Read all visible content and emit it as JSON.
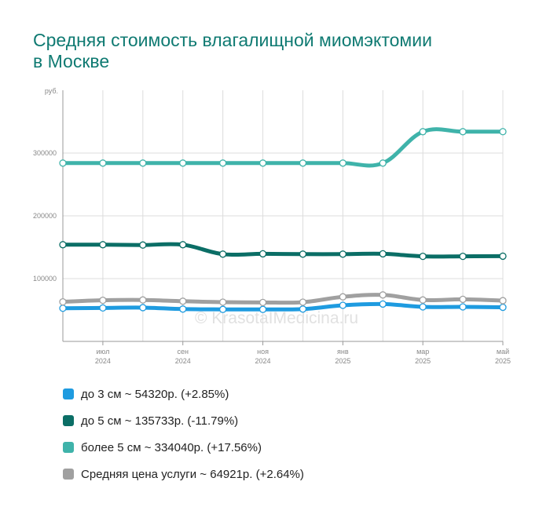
{
  "title_lines": [
    "Средняя стоимость влагалищной миомэктомии",
    "в Москве"
  ],
  "watermark": "© KrasotaIMedicina.ru",
  "legend": [
    {
      "label": "до 3 см ~ 54320р. (+2.85%)",
      "color": "#1e9be0"
    },
    {
      "label": "до 5 см ~ 135733р. (-11.79%)",
      "color": "#0b6e66"
    },
    {
      "label": "более 5 см ~ 334040р. (+17.56%)",
      "color": "#3fb3aa"
    },
    {
      "label": "Средняя цена услуги ~ 64921р. (+2.64%)",
      "color": "#a0a0a0"
    }
  ],
  "chart_data": {
    "type": "line",
    "ylabel": "руб.",
    "ylim": [
      0,
      400000
    ],
    "yticks": [
      100000,
      200000,
      300000
    ],
    "x_tick_labels": [
      {
        "month": "июл",
        "year": "2024"
      },
      {
        "month": "сен",
        "year": "2024"
      },
      {
        "month": "ноя",
        "year": "2024"
      },
      {
        "month": "янв",
        "year": "2025"
      },
      {
        "month": "мар",
        "year": "2025"
      },
      {
        "month": "май",
        "year": "2025"
      }
    ],
    "x": [
      "2024-06",
      "2024-07",
      "2024-08",
      "2024-09",
      "2024-10",
      "2024-11",
      "2024-12",
      "2025-01",
      "2025-02",
      "2025-03",
      "2025-04",
      "2025-05"
    ],
    "grid": true,
    "series": [
      {
        "name": "до 3 см ~ 54320р. (+2.85%)",
        "color": "#1e9be0",
        "values": [
          52800,
          53300,
          53800,
          51500,
          51000,
          51000,
          51500,
          57500,
          59500,
          55000,
          55000,
          54320
        ]
      },
      {
        "name": "до 5 см ~ 135733р. (-11.79%)",
        "color": "#0b6e66",
        "values": [
          154000,
          154000,
          153500,
          154000,
          139000,
          139500,
          139000,
          139000,
          139500,
          135500,
          135500,
          135733
        ]
      },
      {
        "name": "более 5 см ~ 334040р. (+17.56%)",
        "color": "#3fb3aa",
        "values": [
          284000,
          284000,
          284000,
          284000,
          284000,
          284000,
          284000,
          284000,
          284000,
          334000,
          334000,
          334040
        ]
      },
      {
        "name": "Средняя цена услуги ~ 64921р. (+2.64%)",
        "color": "#a0a0a0",
        "values": [
          63000,
          65500,
          66000,
          64000,
          62500,
          62000,
          62500,
          71000,
          74000,
          66000,
          67000,
          64921
        ]
      }
    ]
  }
}
